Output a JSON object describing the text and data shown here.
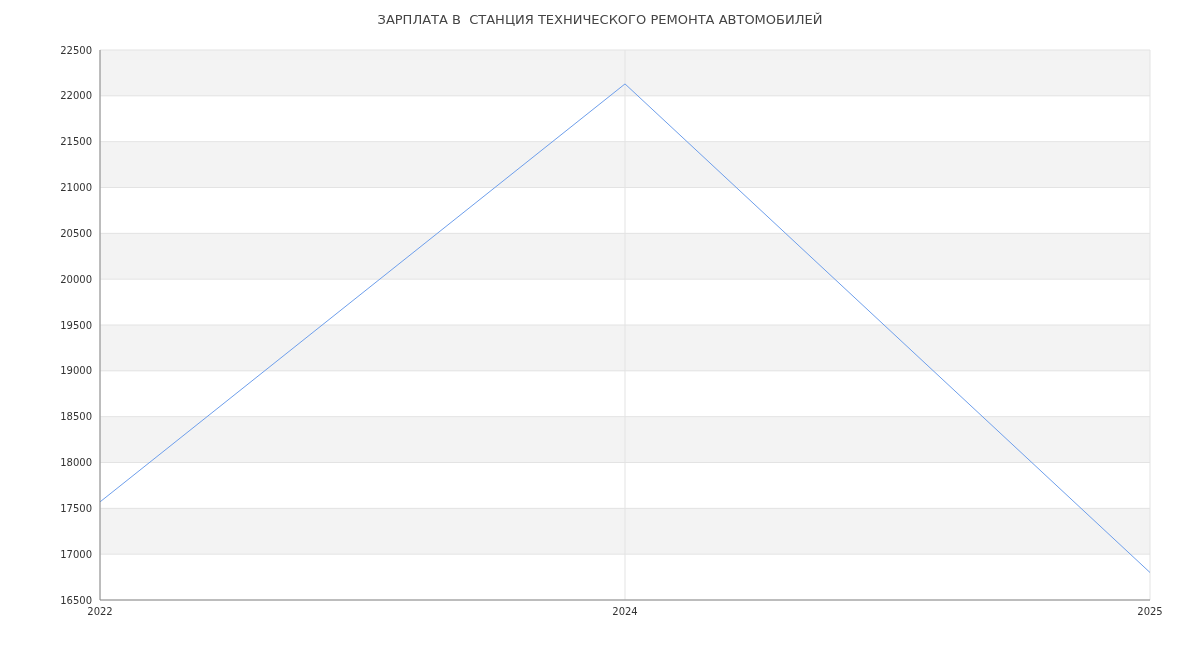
{
  "chart_data": {
    "type": "line",
    "title": "ЗАРПЛАТА В  СТАНЦИЯ ТЕХНИЧЕСКОГО РЕМОНТА АВТОМОБИЛЕЙ",
    "categories": [
      "2022",
      "2024",
      "2025"
    ],
    "series": [
      {
        "color": "#6d9eeb",
        "values": [
          17570,
          22130,
          16800
        ]
      }
    ],
    "ylim": [
      16500,
      22500
    ],
    "yticks": [
      16500,
      17000,
      17500,
      18000,
      18500,
      19000,
      19500,
      20000,
      20500,
      21000,
      21500,
      22000,
      22500
    ],
    "grid": true,
    "marker": "none",
    "line_style": "solid"
  }
}
